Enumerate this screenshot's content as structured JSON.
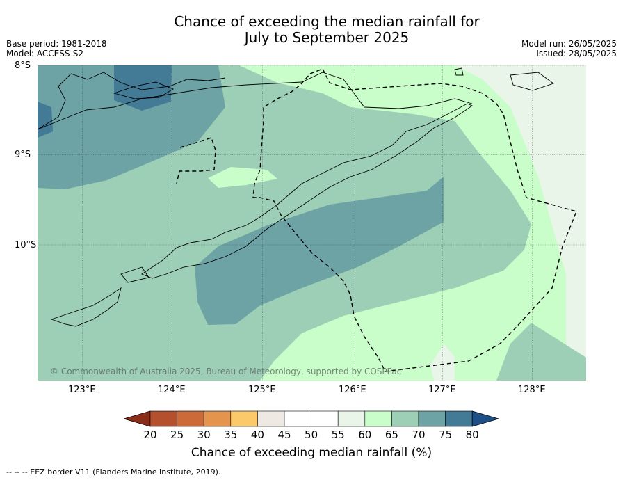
{
  "title_line1": "Chance of exceeding the median rainfall for",
  "title_line2": "July to September 2025",
  "base_period": "Base period: 1981-2018",
  "model": "Model: ACCESS-S2",
  "model_run": "Model run: 26/05/2025",
  "issued": "Issued: 28/05/2025",
  "lat_ticks": [
    "8°S",
    "9°S",
    "10°S"
  ],
  "lon_ticks": [
    "123°E",
    "124°E",
    "125°E",
    "126°E",
    "127°E",
    "128°E"
  ],
  "copyright": "© Commonwealth of Australia 2025, Bureau of Meteorology, supported by COSPPac",
  "colorbar": {
    "label": "Chance of exceeding median rainfall (%)",
    "ticks": [
      "20",
      "25",
      "30",
      "35",
      "40",
      "45",
      "50",
      "55",
      "60",
      "65",
      "70",
      "75",
      "80"
    ],
    "colors": [
      "#8c2d1a",
      "#b4502d",
      "#cd6a3a",
      "#e4944c",
      "#fbc969",
      "#eeeae3",
      "#ffffff",
      "#ffffff",
      "#e8f5e8",
      "#c9fdca",
      "#9ccfb6",
      "#6ea3a5",
      "#437b97",
      "#1e4f86"
    ]
  },
  "footnote": "-- -- -- EEZ border V11 (Flanders Marine Institute, 2019)."
}
